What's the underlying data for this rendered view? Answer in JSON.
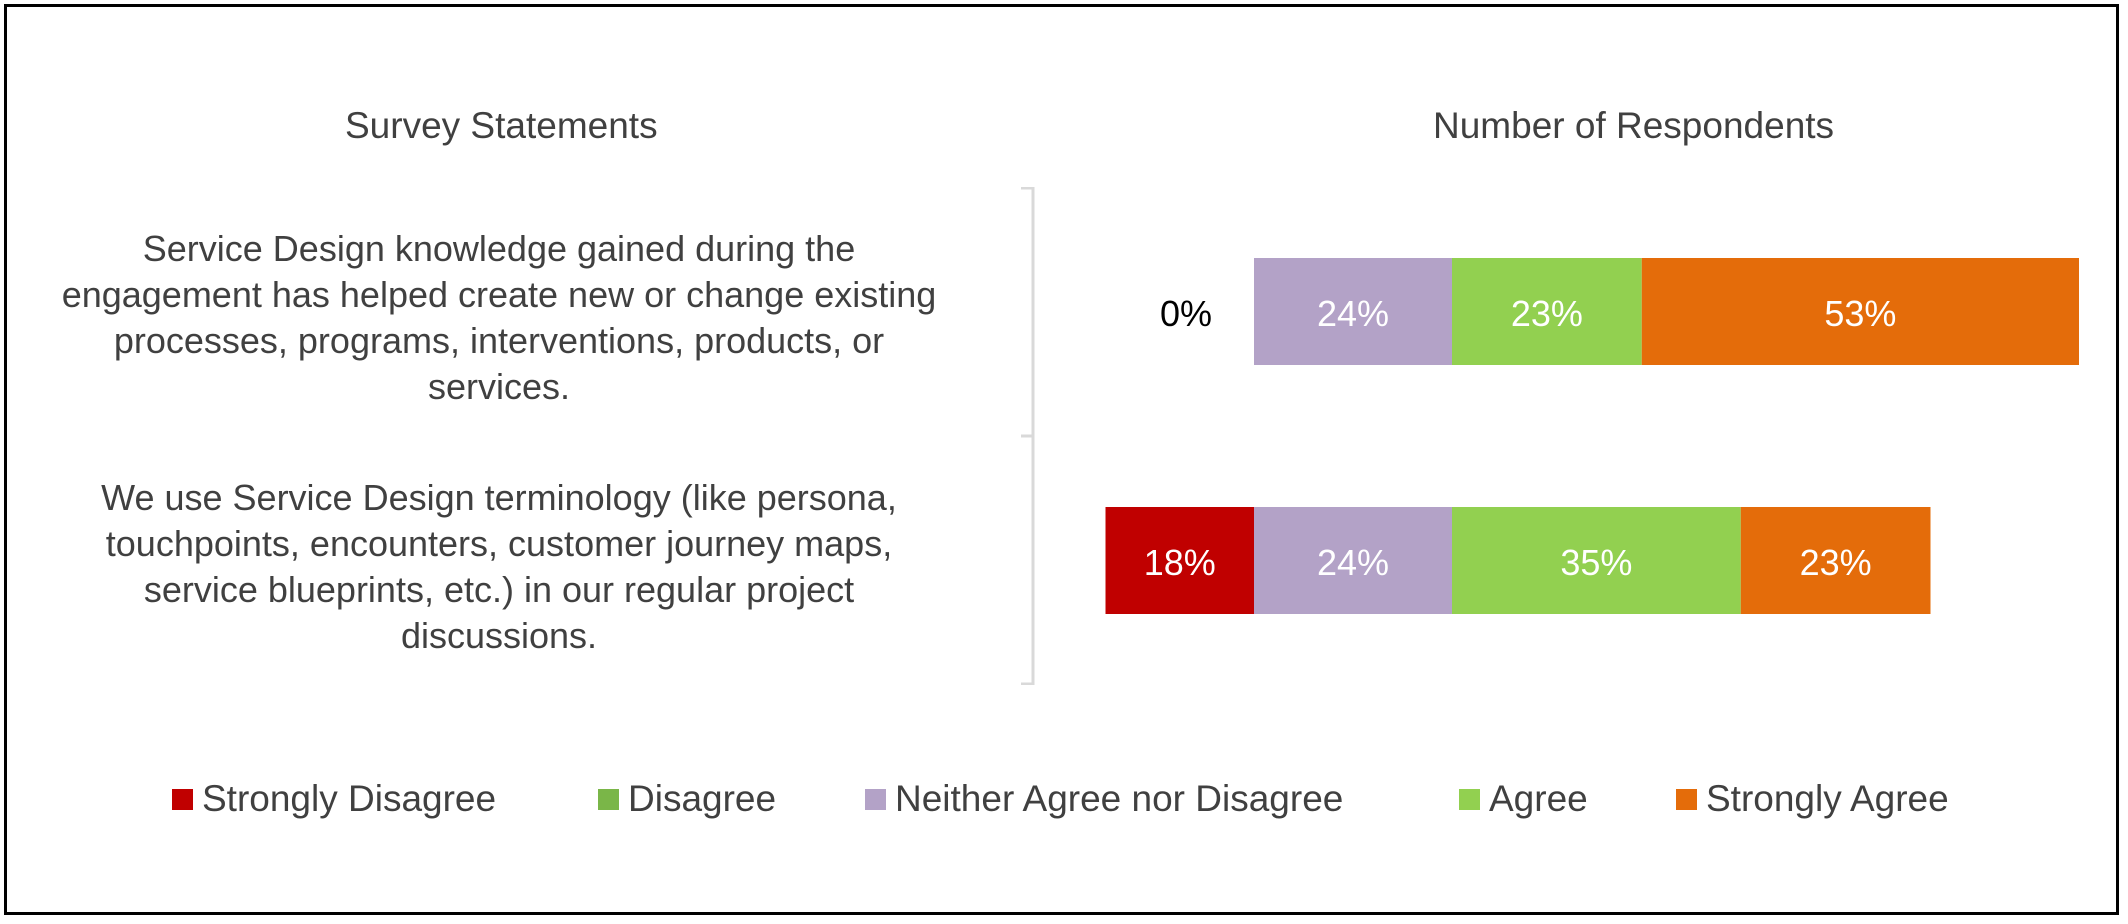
{
  "left_heading": "Survey Statements",
  "chart_data": {
    "type": "bar",
    "orientation": "horizontal",
    "stacked": true,
    "title": "",
    "xlabel": "Number of Respondents",
    "ylabel": "Survey Statements",
    "categories": [
      "Service Design knowledge gained during the\nengagement has helped create new or change existing\nprocesses, programs, interventions, products, or\nservices.",
      "We use Service Design terminology (like persona,\ntouchpoints, encounters, customer journey maps,\nservice blueprints, etc.) in our regular project\ndiscussions."
    ],
    "series": [
      {
        "name": "Strongly Disagree",
        "color": "#C00000",
        "values": [
          0,
          18
        ],
        "labels": [
          "0%",
          "18%"
        ]
      },
      {
        "name": "Disagree",
        "color": "#7AB648",
        "values": [
          0,
          0
        ],
        "labels": [
          "",
          ""
        ]
      },
      {
        "name": "Neither Agree nor Disagree",
        "color": "#B3A2C7",
        "values": [
          24,
          24
        ],
        "labels": [
          "24%",
          "24%"
        ]
      },
      {
        "name": "Agree",
        "color": "#92D050",
        "values": [
          23,
          35
        ],
        "labels": [
          "23%",
          "35%"
        ]
      },
      {
        "name": "Strongly Agree",
        "color": "#E46C0A",
        "values": [
          53,
          23
        ],
        "labels": [
          "53%",
          "23%"
        ]
      }
    ],
    "diverging_center": "Neither Agree nor Disagree",
    "grid": false,
    "legend": "bottom"
  }
}
